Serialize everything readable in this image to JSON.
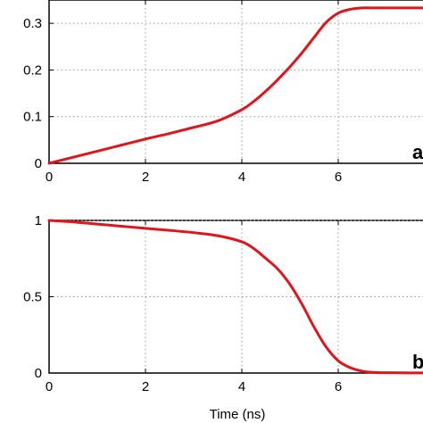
{
  "chart_data": [
    {
      "type": "line",
      "panel_label": "a",
      "xlabel": "",
      "ylabel": "",
      "xlim": [
        0,
        8
      ],
      "ylim": [
        0,
        0.35
      ],
      "xticks": [
        0,
        2,
        4,
        6
      ],
      "yticks": [
        0,
        0.1,
        0.2,
        0.3
      ],
      "xtick_labels": [
        "0",
        "2",
        "4",
        "6"
      ],
      "ytick_labels": [
        "0",
        "0.1",
        "0.2",
        "0.3"
      ],
      "grid": true,
      "color": "#e0151b",
      "series": [
        {
          "x": [
            0,
            0.5,
            1,
            1.5,
            2,
            2.5,
            3,
            3.5,
            4,
            4.25,
            4.5,
            4.75,
            5,
            5.25,
            5.5,
            5.75,
            6,
            6.25,
            6.5,
            6.75,
            7,
            7.5,
            8
          ],
          "y": [
            0,
            0.013,
            0.026,
            0.039,
            0.052,
            0.064,
            0.077,
            0.091,
            0.115,
            0.133,
            0.155,
            0.18,
            0.207,
            0.237,
            0.27,
            0.302,
            0.322,
            0.33,
            0.333,
            0.333,
            0.333,
            0.333,
            0.333
          ]
        }
      ]
    },
    {
      "type": "line",
      "panel_label": "b",
      "xlabel": "Time (ns)",
      "ylabel": "",
      "xlim": [
        0,
        8
      ],
      "ylim": [
        0,
        1
      ],
      "xticks": [
        0,
        2,
        4,
        6
      ],
      "yticks": [
        0,
        0.5,
        1
      ],
      "xtick_labels": [
        "0",
        "2",
        "4",
        "6"
      ],
      "ytick_labels": [
        "0",
        "0.5",
        "1"
      ],
      "grid": true,
      "color": "#e0151b",
      "series": [
        {
          "x": [
            0,
            0.5,
            1,
            1.5,
            2,
            2.5,
            3,
            3.5,
            4,
            4.25,
            4.5,
            4.75,
            5,
            5.25,
            5.5,
            5.75,
            6,
            6.25,
            6.5,
            6.75,
            7,
            7.5,
            8
          ],
          "y": [
            1,
            0.99,
            0.976,
            0.962,
            0.948,
            0.935,
            0.92,
            0.9,
            0.86,
            0.815,
            0.75,
            0.68,
            0.58,
            0.45,
            0.3,
            0.17,
            0.08,
            0.035,
            0.012,
            0.004,
            0.002,
            0.001,
            0.001
          ]
        }
      ]
    }
  ]
}
